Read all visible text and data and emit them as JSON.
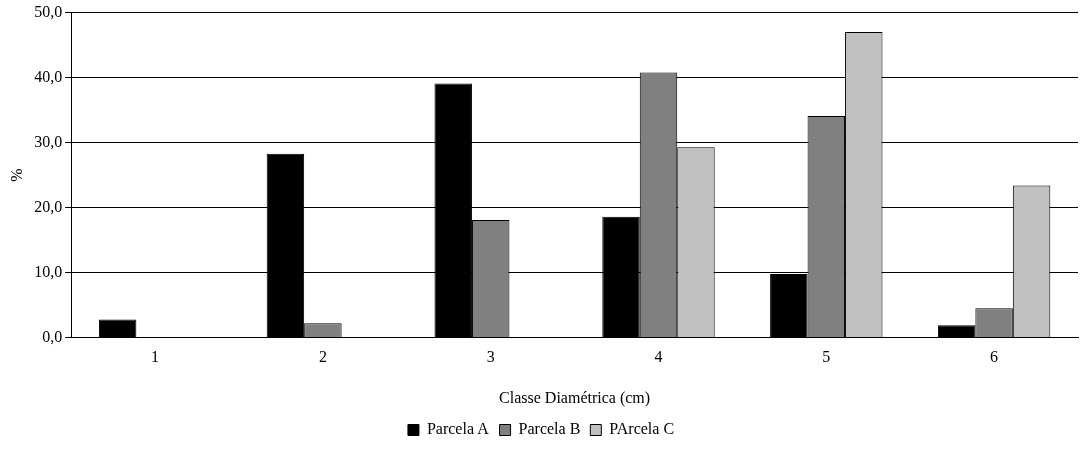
{
  "chart_data": {
    "type": "bar",
    "xlabel": "Classe Diamétrica (cm)",
    "ylabel": "%",
    "categories": [
      "1",
      "2",
      "3",
      "4",
      "5",
      "6"
    ],
    "series": [
      {
        "name": "Parcela A",
        "color": "#000000",
        "values": [
          2.8,
          28.3,
          39.1,
          18.6,
          9.8,
          1.9
        ]
      },
      {
        "name": "Parcela B",
        "color": "#808080",
        "values": [
          0,
          2.2,
          18.1,
          40.8,
          34.1,
          4.5
        ]
      },
      {
        "name": "PArcela C",
        "color": "#c0c0c0",
        "values": [
          0,
          0,
          0,
          29.3,
          47.0,
          23.4
        ]
      }
    ],
    "ylim": [
      0,
      50
    ],
    "yticks": [
      {
        "value": 0,
        "label": "0,0"
      },
      {
        "value": 10,
        "label": "10,0"
      },
      {
        "value": 20,
        "label": "20,0"
      },
      {
        "value": 30,
        "label": "30,0"
      },
      {
        "value": 40,
        "label": "40,0"
      },
      {
        "value": 50,
        "label": "50,0"
      }
    ],
    "grid": "y",
    "legend": "bottom"
  }
}
